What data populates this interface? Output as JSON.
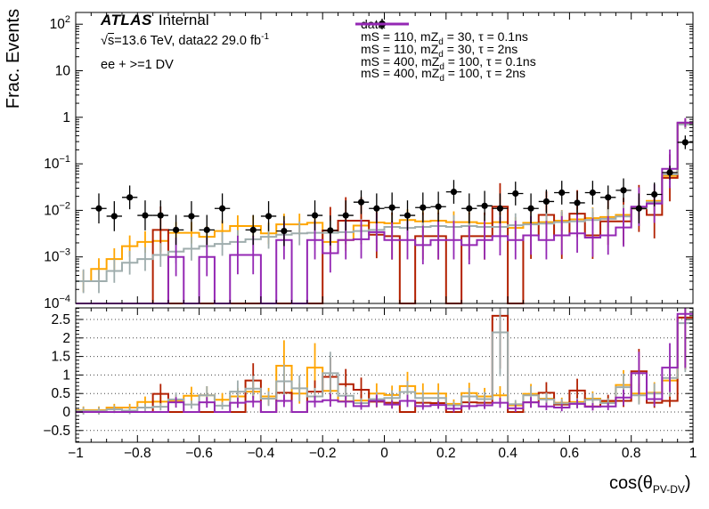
{
  "labels": {
    "atlas": "ATLAS",
    "atlas_suffix": "Internal",
    "lumi_sqrt": "√",
    "lumi_s": "s",
    "lumi_rest": "=13.6 TeV, data22 29.0 fb",
    "lumi_sup": "-1",
    "channel": "ee + >=1 DV",
    "ylabel": "Frac. Events",
    "xlabel_pre": "cos(θ",
    "xlabel_sub": "PV-DV",
    "xlabel_post": ")"
  },
  "legend": {
    "items": [
      {
        "id": "data",
        "pre": "data",
        "sub": "",
        "post": "",
        "color": "#000000",
        "style": "marker"
      },
      {
        "id": "s110-30-01ns",
        "pre": "mS = 110, mZ",
        "sub": "d",
        "post": " = 30, τ = 0.1ns",
        "color": "#ffa500",
        "style": "line"
      },
      {
        "id": "s110-30-2ns",
        "pre": "mS = 110, mZ",
        "sub": "d",
        "post": " = 30, τ = 2ns",
        "color": "#b22000",
        "style": "line"
      },
      {
        "id": "s400-100-01ns",
        "pre": "mS = 400, mZ",
        "sub": "d",
        "post": " = 100, τ = 0.1ns",
        "color": "#9fadad",
        "style": "line"
      },
      {
        "id": "s400-100-2ns",
        "pre": "mS = 400, mZ",
        "sub": "d",
        "post": " = 100, τ = 2ns",
        "color": "#9428b4",
        "style": "line"
      }
    ]
  },
  "axes": {
    "main_yticks": [
      {
        "base": "10",
        "exp": "2",
        "v": 100
      },
      {
        "base": "10",
        "exp": "",
        "v": 10
      },
      {
        "base": "1",
        "exp": "",
        "v": 1
      },
      {
        "base": "10",
        "exp": "−1",
        "v": 0.1
      },
      {
        "base": "10",
        "exp": "−2",
        "v": 0.01
      },
      {
        "base": "10",
        "exp": "−3",
        "v": 0.001
      },
      {
        "base": "10",
        "exp": "−4",
        "v": 0.0001
      }
    ],
    "ratio_yticks": [
      {
        "label": "2.5",
        "v": 2.5
      },
      {
        "label": "2",
        "v": 2
      },
      {
        "label": "1.5",
        "v": 1.5
      },
      {
        "label": "1",
        "v": 1
      },
      {
        "label": "0.5",
        "v": 0.5
      },
      {
        "label": "0",
        "v": 0
      },
      {
        "label": "−0.5",
        "v": -0.5
      }
    ],
    "xticks": [
      {
        "label": "−1",
        "v": -1
      },
      {
        "label": "−0.8",
        "v": -0.8
      },
      {
        "label": "−0.6",
        "v": -0.6
      },
      {
        "label": "−0.4",
        "v": -0.4
      },
      {
        "label": "−0.2",
        "v": -0.2
      },
      {
        "label": "0",
        "v": 0
      },
      {
        "label": "0.2",
        "v": 0.2
      },
      {
        "label": "0.4",
        "v": 0.4
      },
      {
        "label": "0.6",
        "v": 0.6
      },
      {
        "label": "0.8",
        "v": 0.8
      },
      {
        "label": "1",
        "v": 1
      }
    ]
  },
  "chart_data": {
    "type": "line",
    "note": "ROOT-style histogram comparison: black data points with Poisson error bars over 4 signal-MC step histograms; lower panel is MC/data ratio with dotted grid.",
    "x_bins": {
      "min": -1,
      "max": 1,
      "n": 40
    },
    "xlabel": "cos(theta_PV-DV)",
    "ylabel": "Frac. Events",
    "main": {
      "ylog": true,
      "ylim": [
        0.0001,
        178
      ],
      "data_points": [
        null,
        0.011,
        0.0075,
        0.019,
        0.0078,
        0.0078,
        0.0038,
        0.0075,
        0.0038,
        0.011,
        null,
        0.0038,
        0.0075,
        0.0036,
        null,
        0.0078,
        0.0037,
        0.0078,
        0.015,
        0.011,
        0.0115,
        0.0078,
        0.0115,
        0.012,
        0.025,
        0.011,
        0.0125,
        0.011,
        0.023,
        0.011,
        0.0155,
        0.024,
        0.0145,
        0.024,
        0.019,
        0.027,
        0.011,
        0.022,
        0.065,
        0.29
      ],
      "series": [
        {
          "id": "s110-30-01ns",
          "name": "mS = 110, mZd = 30, tau = 0.1ns",
          "color": "#ffa500",
          "values": [
            0.0003,
            0.00055,
            0.0009,
            0.0017,
            0.0021,
            0.0022,
            0.0033,
            0.0033,
            0.0027,
            0.0036,
            0.0046,
            0.0046,
            0.0032,
            0.005,
            0.005,
            0.0054,
            0.0021,
            0.0023,
            0.0047,
            0.0055,
            0.0053,
            0.0062,
            0.0058,
            0.006,
            0.0056,
            0.0056,
            0.0053,
            0.0056,
            0.0042,
            0.0054,
            0.0056,
            0.006,
            0.0064,
            0.0068,
            0.0072,
            0.008,
            0.011,
            0.016,
            0.055,
            0.74
          ]
        },
        {
          "id": "s110-30-2ns",
          "name": "mS = 110, mZd = 30, tau = 2ns",
          "color": "#b22000",
          "values": [
            0,
            0,
            0,
            0,
            0,
            0.0038,
            0,
            0,
            0,
            0,
            0,
            0,
            0,
            0,
            0,
            0,
            0.0037,
            0.006,
            0.006,
            0.003,
            0.0028,
            0,
            0.0028,
            0.0028,
            0,
            0.0028,
            0.0028,
            0.012,
            0,
            0.0029,
            0.008,
            0.0029,
            0.0085,
            0.0029,
            0.0058,
            0.0058,
            0.011,
            0.008,
            0.05,
            0.74
          ]
        },
        {
          "id": "s400-100-01ns",
          "name": "mS = 400, mZd = 100, tau = 0.1ns",
          "color": "#9fadad",
          "values": [
            0.0003,
            0.0003,
            0.0005,
            0.00075,
            0.0009,
            0.0011,
            0.0013,
            0.0015,
            0.0017,
            0.0019,
            0.0021,
            0.0024,
            0.0027,
            0.003,
            0.0032,
            0.0033,
            0.0033,
            0.0034,
            0.0036,
            0.0038,
            0.0044,
            0.0042,
            0.0044,
            0.0046,
            0.0044,
            0.0046,
            0.0044,
            0.0044,
            0.0048,
            0.005,
            0.0052,
            0.0056,
            0.0058,
            0.0062,
            0.0066,
            0.0074,
            0.011,
            0.015,
            0.06,
            0.7
          ]
        },
        {
          "id": "s400-100-2ns",
          "name": "mS = 400, mZd = 100, tau = 2ns",
          "color": "#9428b4",
          "values": [
            0,
            0,
            0,
            0,
            0,
            0,
            0.001,
            0,
            0.001,
            0,
            0.0011,
            0.0011,
            0,
            0.0023,
            0,
            0.0023,
            0.0012,
            0.0023,
            0.0024,
            0.0034,
            0.0023,
            0.0023,
            0.0018,
            0.0023,
            0.0023,
            0.0018,
            0.0023,
            0.0028,
            0.0023,
            0.0029,
            0.0023,
            0.0029,
            0.0032,
            0.0026,
            0.0029,
            0.0043,
            0.012,
            0.014,
            0.078,
            0.77
          ]
        }
      ]
    },
    "ratio": {
      "ylim": [
        -0.82,
        2.81
      ],
      "grid": [
        -0.5,
        0,
        0.5,
        1,
        1.5,
        2,
        2.5
      ],
      "series": [
        {
          "id": "s110-30-01ns",
          "color": "#ffa500",
          "values": [
            0.05,
            0.05,
            0.12,
            0.12,
            0.27,
            0.28,
            0.3,
            0.44,
            0.45,
            0.33,
            0.42,
            0.55,
            0.42,
            1.25,
            0.5,
            1.2,
            0.57,
            0.29,
            0.31,
            0.5,
            0.46,
            0.7,
            0.5,
            0.5,
            0.22,
            0.51,
            0.42,
            0.45,
            0.18,
            0.49,
            0.36,
            0.25,
            0.27,
            0.36,
            0.27,
            0.73,
            0.5,
            0.52,
            0.85,
            2.55
          ]
        },
        {
          "id": "s110-30-2ns",
          "color": "#b22000",
          "values": [
            0,
            0,
            0,
            0,
            0,
            0.49,
            0,
            0,
            0,
            0,
            0,
            0.85,
            0,
            0.52,
            0,
            0.55,
            0.95,
            0.75,
            0.6,
            0.28,
            0.25,
            0,
            0.25,
            0.24,
            0,
            0.26,
            0.25,
            2.6,
            0,
            0.26,
            0.52,
            0.2,
            0.58,
            0.15,
            0.3,
            0.3,
            1.1,
            0.25,
            0.3,
            2.55
          ]
        },
        {
          "id": "s400-100-01ns",
          "color": "#9fadad",
          "values": [
            0.03,
            0.03,
            0.07,
            0.04,
            0.12,
            0.14,
            0.34,
            0.2,
            0.45,
            0.17,
            0.55,
            0.63,
            0.36,
            0.83,
            0.64,
            0.42,
            1.05,
            0.44,
            0.24,
            0.35,
            0.38,
            0.54,
            0.38,
            0.38,
            0.18,
            0.42,
            0.35,
            2.15,
            0.21,
            0.45,
            0.34,
            0.23,
            0.24,
            0.33,
            0.24,
            0.67,
            0.45,
            0.5,
            0.92,
            2.4
          ]
        },
        {
          "id": "s400-100-2ns",
          "color": "#9428b4",
          "values": [
            0,
            0,
            0,
            0,
            0,
            0,
            0.26,
            0,
            0.26,
            0,
            0.25,
            0.28,
            0,
            0.3,
            0,
            0.28,
            0.32,
            0.28,
            0.16,
            0.3,
            0.2,
            0.3,
            0.16,
            0.19,
            0.09,
            0.16,
            0.18,
            0.25,
            0.1,
            0.26,
            0.15,
            0.12,
            0.22,
            0.14,
            0.15,
            0.39,
            1.05,
            0.35,
            1.2,
            2.65
          ]
        }
      ]
    }
  }
}
